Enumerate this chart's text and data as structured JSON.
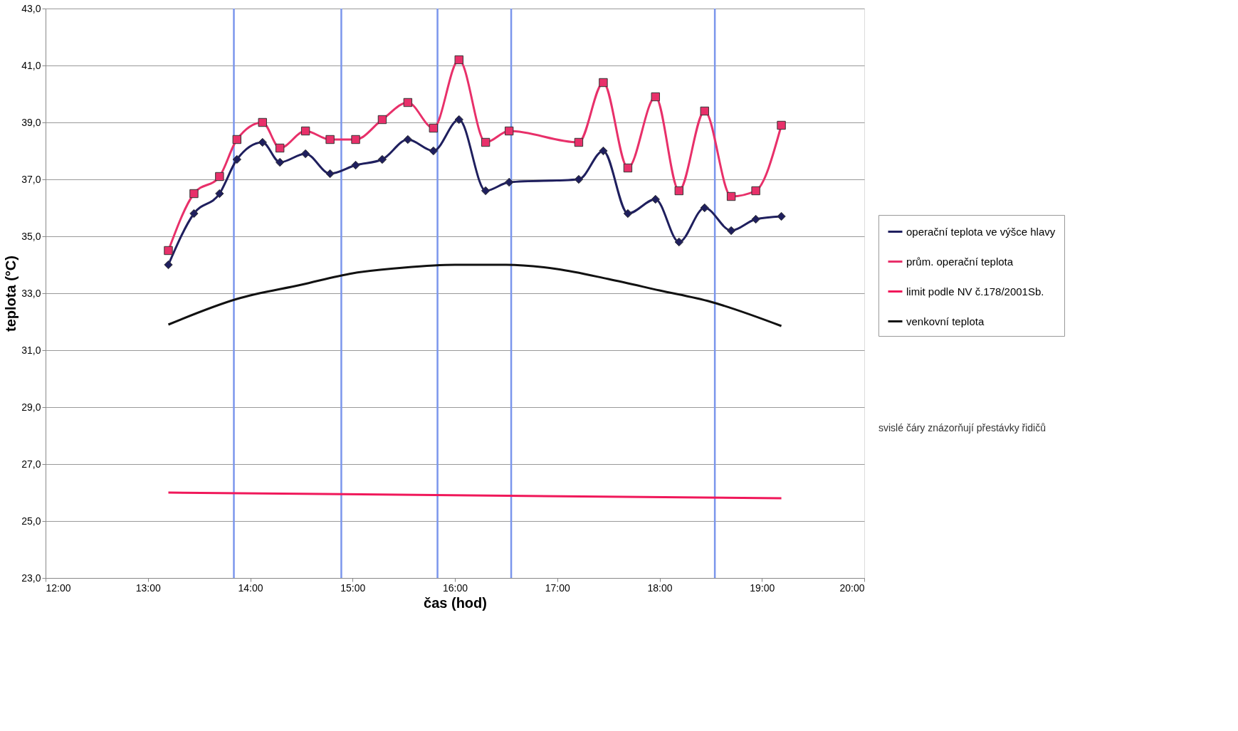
{
  "chart_data": {
    "type": "line",
    "xlabel": "čas (hod)",
    "ylabel": "teplota (°C)",
    "xlim": [
      12,
      20
    ],
    "xticks": [
      {
        "value": 12,
        "label": "12:00"
      },
      {
        "value": 13,
        "label": "13:00"
      },
      {
        "value": 14,
        "label": "14:00"
      },
      {
        "value": 15,
        "label": "15:00"
      },
      {
        "value": 16,
        "label": "16:00"
      },
      {
        "value": 17,
        "label": "17:00"
      },
      {
        "value": 18,
        "label": "18:00"
      },
      {
        "value": 19,
        "label": "19:00"
      },
      {
        "value": 20,
        "label": "20:00"
      }
    ],
    "ylim": [
      23,
      43
    ],
    "yticks": [
      {
        "value": 23,
        "label": "23,0"
      },
      {
        "value": 25,
        "label": "25,0"
      },
      {
        "value": 27,
        "label": "27,0"
      },
      {
        "value": 29,
        "label": "29,0"
      },
      {
        "value": 31,
        "label": "31,0"
      },
      {
        "value": 33,
        "label": "33,0"
      },
      {
        "value": 35,
        "label": "35,0"
      },
      {
        "value": 37,
        "label": "37,0"
      },
      {
        "value": 39,
        "label": "39,0"
      },
      {
        "value": 41,
        "label": "41,0"
      },
      {
        "value": 43,
        "label": "43,0"
      }
    ],
    "grid": "y",
    "legend": "right",
    "line_style": "solid",
    "series": [
      {
        "name": "operační teplota ve výšce hlavy",
        "color": "#1f1f5e",
        "marker": "diamond",
        "x": [
          13.2,
          13.45,
          13.7,
          13.87,
          14.12,
          14.29,
          14.54,
          14.78,
          15.03,
          15.29,
          15.54,
          15.79,
          16.04,
          16.3,
          16.53,
          17.21,
          17.45,
          17.69,
          17.96,
          18.19,
          18.44,
          18.7,
          18.94,
          19.19
        ],
        "values": [
          34.0,
          35.8,
          36.5,
          37.7,
          38.3,
          37.6,
          37.9,
          37.2,
          37.5,
          37.7,
          38.4,
          38.0,
          39.1,
          36.6,
          36.9,
          37.0,
          38.0,
          35.8,
          36.3,
          34.8,
          36.0,
          35.2,
          35.6,
          35.7
        ]
      },
      {
        "name": "prům. operační teplota",
        "color": "#e8306a",
        "marker": "square",
        "x": [
          13.2,
          13.45,
          13.7,
          13.87,
          14.12,
          14.29,
          14.54,
          14.78,
          15.03,
          15.29,
          15.54,
          15.79,
          16.04,
          16.3,
          16.53,
          17.21,
          17.45,
          17.69,
          17.96,
          18.19,
          18.44,
          18.7,
          18.94,
          19.19
        ],
        "values": [
          34.5,
          36.5,
          37.1,
          38.4,
          39.0,
          38.1,
          38.7,
          38.4,
          38.4,
          39.1,
          39.7,
          38.8,
          41.2,
          38.3,
          38.7,
          38.3,
          40.4,
          37.4,
          39.9,
          36.6,
          39.4,
          36.4,
          36.6,
          38.9
        ]
      },
      {
        "name": "limit podle NV č.178/2001Sb.",
        "color": "#f0185a",
        "marker": "none",
        "x": [
          13.2,
          19.19
        ],
        "values": [
          26.0,
          25.8
        ]
      },
      {
        "name": "venkovní teplota",
        "color": "#111111",
        "marker": "none",
        "x": [
          13.2,
          13.87,
          14.5,
          15.0,
          15.5,
          16.0,
          16.5,
          17.0,
          17.5,
          18.0,
          18.5,
          19.19
        ],
        "values": [
          31.9,
          32.8,
          33.3,
          33.7,
          33.9,
          34.0,
          34.0,
          33.85,
          33.5,
          33.1,
          32.7,
          31.85
        ]
      }
    ],
    "ref_lines": [
      {
        "axis": "x",
        "value": 13.84,
        "color": "#7b96ec"
      },
      {
        "axis": "x",
        "value": 14.89,
        "color": "#7b96ec"
      },
      {
        "axis": "x",
        "value": 15.83,
        "color": "#7b96ec"
      },
      {
        "axis": "x",
        "value": 16.55,
        "color": "#7b96ec"
      },
      {
        "axis": "x",
        "value": 18.54,
        "color": "#7b96ec"
      }
    ],
    "annotations": [
      "svislé čáry znázorňují přestávky řidičů"
    ]
  }
}
